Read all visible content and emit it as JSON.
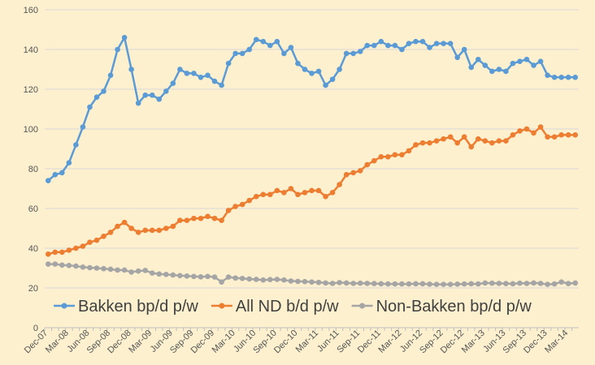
{
  "chart_data": {
    "type": "line",
    "title": "",
    "xlabel": "",
    "ylabel": "",
    "ylim": [
      0,
      160
    ],
    "yticks": [
      0,
      20,
      40,
      60,
      80,
      100,
      120,
      140,
      160
    ],
    "grid": "horizontal",
    "legend_position": "bottom-inside",
    "x": [
      "Dec-07",
      "Jan-08",
      "Feb-08",
      "Mar-08",
      "Apr-08",
      "May-08",
      "Jun-08",
      "Jul-08",
      "Aug-08",
      "Sep-08",
      "Oct-08",
      "Nov-08",
      "Dec-08",
      "Jan-09",
      "Feb-09",
      "Mar-09",
      "Apr-09",
      "May-09",
      "Jun-09",
      "Jul-09",
      "Aug-09",
      "Sep-09",
      "Oct-09",
      "Nov-09",
      "Dec-09",
      "Jan-10",
      "Feb-10",
      "Mar-10",
      "Apr-10",
      "May-10",
      "Jun-10",
      "Jul-10",
      "Aug-10",
      "Sep-10",
      "Oct-10",
      "Nov-10",
      "Dec-10",
      "Jan-11",
      "Feb-11",
      "Mar-11",
      "Apr-11",
      "May-11",
      "Jun-11",
      "Jul-11",
      "Aug-11",
      "Sep-11",
      "Oct-11",
      "Nov-11",
      "Dec-11",
      "Jan-12",
      "Feb-12",
      "Mar-12",
      "Apr-12",
      "May-12",
      "Jun-12",
      "Jul-12",
      "Aug-12",
      "Sep-12",
      "Oct-12",
      "Nov-12",
      "Dec-12",
      "Jan-13",
      "Feb-13",
      "Mar-13",
      "Apr-13",
      "May-13",
      "Jun-13",
      "Jul-13",
      "Aug-13",
      "Sep-13",
      "Oct-13",
      "Nov-13",
      "Dec-13",
      "Jan-14",
      "Feb-14",
      "Mar-14",
      "Apr-14"
    ],
    "xtick_labels": [
      "Dec-07",
      "Mar-08",
      "Jun-08",
      "Sep-08",
      "Dec-08",
      "Mar-09",
      "Jun-09",
      "Sep-09",
      "Dec-09",
      "Mar-10",
      "Jun-10",
      "Sep-10",
      "Dec-10",
      "Mar-11",
      "Jun-11",
      "Sep-11",
      "Dec-11",
      "Mar-12",
      "Jun-12",
      "Sep-12",
      "Dec-12",
      "Mar-13",
      "Jun-13",
      "Sep-13",
      "Dec-13",
      "Mar-14"
    ],
    "series": [
      {
        "name": "Bakken bp/d p/w",
        "color": "#5b9bd5",
        "values": [
          74,
          77,
          78,
          83,
          92,
          101,
          111,
          116,
          119,
          127,
          140,
          146,
          130,
          113,
          117,
          117,
          115,
          119,
          123,
          130,
          128,
          128,
          126,
          127,
          124,
          122,
          133,
          138,
          138,
          140,
          145,
          144,
          142,
          144,
          138,
          141,
          133,
          130,
          128,
          129,
          122,
          125,
          130,
          138,
          138,
          139,
          142,
          142,
          144,
          142,
          142,
          140,
          143,
          144,
          144,
          141,
          143,
          143,
          143,
          136,
          140,
          131,
          135,
          132,
          129,
          130,
          129,
          133,
          134,
          135,
          132,
          134,
          127,
          126,
          126,
          126,
          126
        ]
      },
      {
        "name": "All ND b/d p/w",
        "color": "#ed7d31",
        "values": [
          37,
          38,
          38,
          39,
          40,
          41,
          43,
          44,
          46,
          48,
          51,
          53,
          50,
          48,
          49,
          49,
          49,
          50,
          51,
          54,
          54,
          55,
          55,
          56,
          55,
          54,
          59,
          61,
          62,
          64,
          66,
          67,
          67,
          69,
          68,
          70,
          67,
          68,
          69,
          69,
          66,
          68,
          72,
          77,
          78,
          79,
          82,
          84,
          86,
          86,
          87,
          87,
          89,
          92,
          93,
          93,
          94,
          95,
          96,
          93,
          96,
          91,
          95,
          94,
          93,
          94,
          94,
          97,
          99,
          100,
          98,
          101,
          96,
          96,
          97,
          97,
          97
        ]
      },
      {
        "name": "Non-Bakken bp/d p/w",
        "color": "#a5a5a5",
        "values": [
          32,
          32,
          31.5,
          31.3,
          31,
          30.5,
          30.2,
          30,
          29.7,
          29.4,
          29,
          29,
          28,
          28.5,
          28.8,
          27.5,
          27,
          26.8,
          26.5,
          26.2,
          26,
          25.8,
          25.6,
          25.8,
          25.5,
          23,
          25.5,
          25,
          24.8,
          24.5,
          24.3,
          24,
          24.2,
          24.3,
          24,
          23.5,
          23.3,
          23.2,
          23,
          22.8,
          22.5,
          22.3,
          22.7,
          22.5,
          22.3,
          22.4,
          22.3,
          22.2,
          22.1,
          22,
          22,
          22,
          22,
          22.1,
          22.1,
          21.9,
          21.8,
          21.8,
          21.8,
          21.9,
          22,
          22.1,
          22,
          22.5,
          22.4,
          22.3,
          22.2,
          22.1,
          22.4,
          22.3,
          22.5,
          22.3,
          21.8,
          22,
          23,
          22.2,
          22.5
        ]
      }
    ]
  }
}
